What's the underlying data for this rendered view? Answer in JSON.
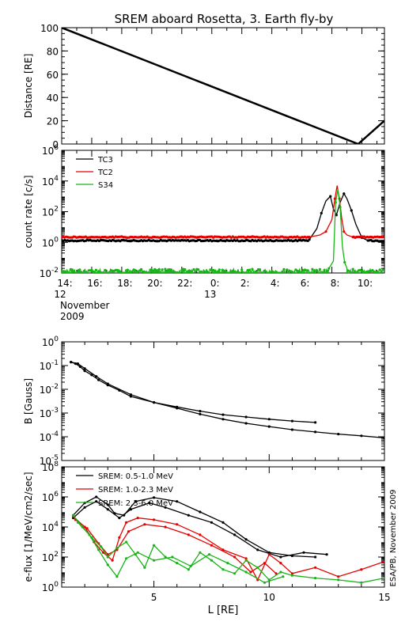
{
  "title": "SREM aboard Rosetta, 3. Earth fly-by",
  "side_note": "ESA/PB, November 2009",
  "colors": {
    "black": "#000000",
    "red": "#e60000",
    "green": "#18b418"
  },
  "chart_data": [
    {
      "id": "distance",
      "type": "line",
      "ylabel": "Distance [RE]",
      "ylim": [
        0,
        100
      ],
      "yticks": [
        "0",
        "20",
        "40",
        "60",
        "80",
        "100"
      ],
      "xlim": [
        14,
        35.5
      ],
      "series": [
        {
          "color": "#000000",
          "x": [
            14,
            33.75,
            35.5
          ],
          "y": [
            102,
            0,
            20
          ]
        }
      ]
    },
    {
      "id": "count_rate",
      "type": "line",
      "ylabel": "count rate [c/s]",
      "yscale": "log",
      "ylim": [
        0.01,
        1000000
      ],
      "yticks": [
        {
          "base": "10",
          "exp": "6"
        },
        {
          "base": "10",
          "exp": "4"
        },
        {
          "base": "10",
          "exp": "2"
        },
        {
          "base": "10",
          "exp": "0"
        },
        {
          "base": "10",
          "exp": "-2"
        }
      ],
      "xlim": [
        14,
        35.5
      ],
      "xticks": [
        "14:",
        "16:",
        "18:",
        "20:",
        "22:",
        "0:",
        "2:",
        "4:",
        "6:",
        "8:",
        "10:"
      ],
      "xtick_values": [
        14,
        16,
        18,
        20,
        22,
        24,
        26,
        28,
        30,
        32,
        34
      ],
      "date_labels": [
        {
          "at": 14,
          "text": "12"
        },
        {
          "at": 24,
          "text": "13"
        }
      ],
      "x_caption": [
        "November",
        "2009"
      ],
      "legend": "top-left",
      "series": [
        {
          "name": "TC3",
          "color": "#000000",
          "baseline": 1.3,
          "x": [
            30.5,
            31.0,
            31.3,
            31.6,
            31.9,
            32.1,
            32.3,
            32.55,
            32.8,
            33.0,
            33.3,
            33.6,
            34.0,
            34.4
          ],
          "y": [
            1.5,
            8,
            80,
            500,
            1000,
            150,
            60,
            400,
            1500,
            700,
            120,
            15,
            2,
            1.3
          ]
        },
        {
          "name": "TC2",
          "color": "#e60000",
          "baseline": 2.2,
          "x": [
            30.5,
            31.2,
            31.6,
            32.0,
            32.2,
            32.35,
            32.5,
            32.65,
            32.8,
            33.0,
            33.4
          ],
          "y": [
            2.2,
            3,
            5,
            30,
            700,
            5000,
            700,
            40,
            5,
            3,
            2.2
          ]
        },
        {
          "name": "S34",
          "color": "#18b418",
          "baseline": 0.012,
          "x": [
            31.8,
            32.1,
            32.25,
            32.4,
            32.55,
            32.7,
            32.85,
            33.0
          ],
          "y": [
            0.02,
            0.06,
            400,
            3000,
            200,
            0.5,
            0.05,
            0.02
          ]
        }
      ]
    },
    {
      "id": "b_field",
      "type": "line",
      "ylabel": "B [Gauss]",
      "yscale": "log",
      "ylim": [
        1e-05,
        1
      ],
      "yticks": [
        {
          "base": "10",
          "exp": "0"
        },
        {
          "base": "10",
          "exp": "-1"
        },
        {
          "base": "10",
          "exp": "-2"
        },
        {
          "base": "10",
          "exp": "-3"
        },
        {
          "base": "10",
          "exp": "-4"
        },
        {
          "base": "10",
          "exp": "-5"
        }
      ],
      "xlim": [
        1,
        15
      ],
      "series": [
        {
          "color": "#000000",
          "x": [
            1.4,
            1.6,
            1.8,
            2.0,
            2.3,
            2.6,
            3.0,
            3.5,
            4.0,
            5.0,
            6.0,
            7.0,
            8.0,
            9.0,
            10.0,
            11.0,
            12.0
          ],
          "y": [
            0.14,
            0.12,
            0.09,
            0.06,
            0.04,
            0.025,
            0.015,
            0.009,
            0.005,
            0.0028,
            0.0018,
            0.0012,
            0.00085,
            0.00068,
            0.00055,
            0.00046,
            0.0004
          ]
        },
        {
          "color": "#000000",
          "x": [
            1.4,
            1.7,
            2.0,
            2.5,
            3.0,
            4.0,
            5.0,
            6.0,
            7.0,
            8.0,
            9.0,
            10.0,
            11.0,
            12.0,
            13.0,
            14.0,
            15.0
          ],
          "y": [
            0.14,
            0.12,
            0.075,
            0.035,
            0.017,
            0.006,
            0.0028,
            0.0016,
            0.0009,
            0.00055,
            0.00037,
            0.00027,
            0.0002,
            0.00016,
            0.00013,
            0.00011,
            9e-05
          ]
        }
      ]
    },
    {
      "id": "e_flux",
      "type": "line",
      "ylabel": "e-flux [1/MeV/cm2/sec]",
      "yscale": "log",
      "ylim": [
        1,
        100000000
      ],
      "yticks": [
        {
          "base": "10",
          "exp": "8"
        },
        {
          "base": "10",
          "exp": "6"
        },
        {
          "base": "10",
          "exp": "4"
        },
        {
          "base": "10",
          "exp": "2"
        },
        {
          "base": "10",
          "exp": "0"
        }
      ],
      "xlim": [
        1,
        15
      ],
      "xticks": [
        "5",
        "10",
        "15"
      ],
      "xtick_values": [
        5,
        10,
        15
      ],
      "xlabel": "L [RE]",
      "legend": "top-left",
      "series": [
        {
          "name": "SREM: 0.5-1.0 MeV",
          "color": "#000000",
          "x": [
            1.5,
            2.0,
            2.5,
            3.0,
            3.3,
            3.7,
            4.2,
            5.0,
            6.0,
            7.0,
            8.0,
            9.0,
            10.0,
            11.0,
            12.0
          ],
          "y": [
            60000,
            400000,
            1000000,
            300000,
            80000,
            60000,
            500000,
            900000,
            500000,
            100000,
            20000,
            1500,
            200,
            120,
            100
          ]
        },
        {
          "name": "",
          "color": "#000000",
          "x": [
            1.5,
            2.0,
            2.5,
            3.0,
            3.5,
            4.0,
            4.8,
            5.5,
            6.5,
            7.5,
            8.5,
            9.5,
            10.5,
            11.5,
            12.5
          ],
          "y": [
            40000,
            200000,
            500000,
            150000,
            40000,
            150000,
            400000,
            200000,
            60000,
            20000,
            3000,
            300,
            100,
            200,
            150
          ]
        },
        {
          "name": "SREM: 1.0-2.3 MeV",
          "color": "#e60000",
          "x": [
            1.5,
            2.0,
            2.4,
            2.8,
            3.2,
            3.5,
            3.8,
            4.3,
            5.0,
            6.0,
            7.0,
            8.0,
            9.0,
            9.5,
            10.0,
            10.5,
            11.0,
            12.0,
            13.0,
            14.0,
            15.0
          ],
          "y": [
            50000,
            10000,
            1000,
            200,
            60,
            2000,
            20000,
            40000,
            30000,
            15000,
            3000,
            300,
            80,
            3,
            150,
            40,
            8,
            20,
            5,
            15,
            50
          ]
        },
        {
          "name": "",
          "color": "#e60000",
          "x": [
            1.6,
            2.1,
            2.6,
            3.0,
            3.4,
            3.9,
            4.6,
            5.5,
            6.5,
            7.5,
            8.5,
            9.2,
            9.8,
            10.3
          ],
          "y": [
            30000,
            8000,
            800,
            150,
            300,
            5000,
            15000,
            10000,
            3000,
            600,
            100,
            10,
            40,
            8
          ]
        },
        {
          "name": "SREM: 2.3-6.0 MeV",
          "color": "#18b418",
          "x": [
            1.5,
            1.9,
            2.3,
            2.7,
            3.0,
            3.4,
            3.8,
            4.2,
            4.6,
            5.0,
            5.5,
            6.0,
            6.5,
            7.0,
            7.5,
            8.0,
            8.5,
            9.0,
            9.5,
            10.0,
            10.5,
            11.0,
            12.0,
            13.0,
            14.0,
            15.0
          ],
          "y": [
            60000,
            10000,
            2000,
            500,
            100,
            400,
            1000,
            150,
            20,
            600,
            100,
            40,
            15,
            200,
            60,
            15,
            8,
            60,
            20,
            3,
            10,
            6,
            4,
            3,
            2,
            4
          ]
        },
        {
          "name": "",
          "color": "#18b418",
          "x": [
            1.7,
            2.2,
            2.6,
            3.0,
            3.4,
            3.8,
            4.3,
            5.0,
            5.8,
            6.6,
            7.4,
            8.2,
            9.0,
            9.8,
            10.6
          ],
          "y": [
            20000,
            3000,
            300,
            30,
            5,
            80,
            200,
            60,
            100,
            25,
            150,
            40,
            10,
            2,
            5
          ]
        }
      ]
    }
  ]
}
